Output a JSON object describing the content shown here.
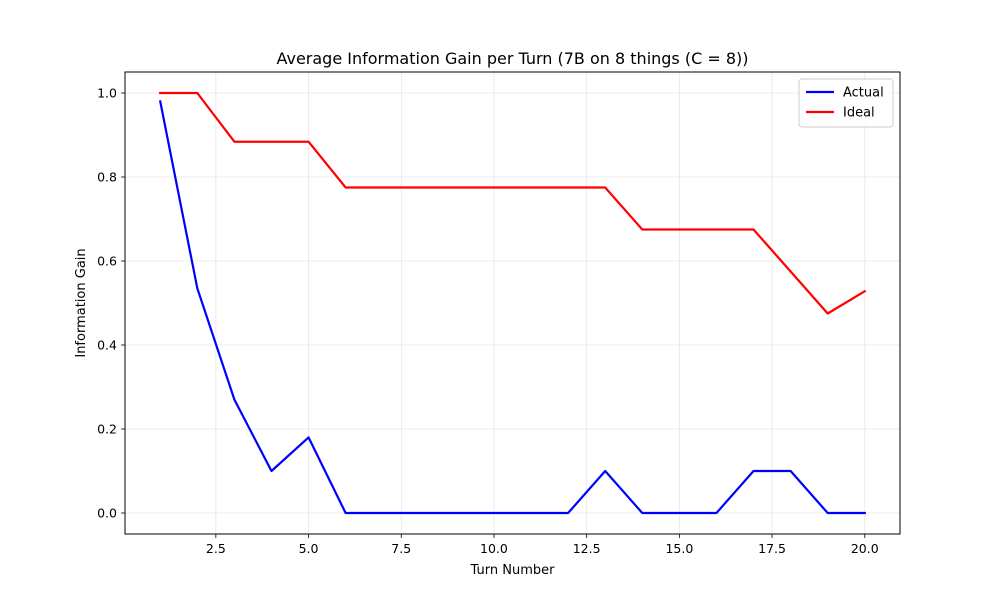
{
  "chart_data": {
    "type": "line",
    "title": "Average Information Gain per Turn (7B on 8 things (C = 8))",
    "xlabel": "Turn Number",
    "ylabel": "Information Gain",
    "xlim": [
      0.05,
      20.95
    ],
    "ylim": [
      -0.05,
      1.05
    ],
    "xticks": [
      2.5,
      5.0,
      7.5,
      10.0,
      12.5,
      15.0,
      17.5,
      20.0
    ],
    "xtick_labels": [
      "2.5",
      "5.0",
      "7.5",
      "10.0",
      "12.5",
      "15.0",
      "17.5",
      "20.0"
    ],
    "yticks": [
      0.0,
      0.2,
      0.4,
      0.6,
      0.8,
      1.0
    ],
    "ytick_labels": [
      "0.0",
      "0.2",
      "0.4",
      "0.6",
      "0.8",
      "1.0"
    ],
    "grid": true,
    "legend": "top-right",
    "x": [
      1,
      2,
      3,
      4,
      5,
      6,
      7,
      8,
      9,
      10,
      11,
      12,
      13,
      14,
      15,
      16,
      17,
      18,
      19,
      20
    ],
    "series": [
      {
        "name": "Actual",
        "color": "#0000ff",
        "values": [
          0.98,
          0.535,
          0.27,
          0.1,
          0.18,
          0.0,
          0.0,
          0.0,
          0.0,
          0.0,
          0.0,
          0.0,
          0.1,
          0.0,
          0.0,
          0.0,
          0.1,
          0.1,
          0.0,
          0.0
        ]
      },
      {
        "name": "Ideal",
        "color": "#ff0000",
        "values": [
          1.0,
          1.0,
          0.884,
          0.884,
          0.884,
          0.775,
          0.775,
          0.775,
          0.775,
          0.775,
          0.775,
          0.775,
          0.775,
          0.675,
          0.675,
          0.675,
          0.675,
          0.575,
          0.475,
          0.528
        ]
      }
    ]
  }
}
